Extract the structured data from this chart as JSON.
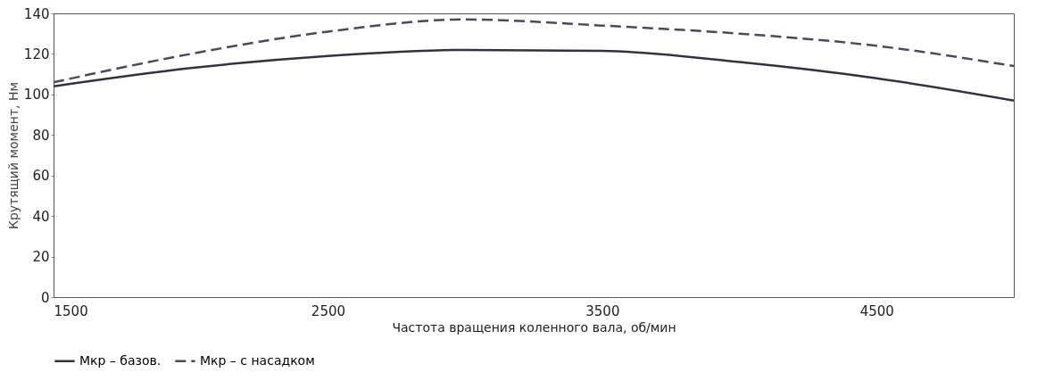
{
  "chart_data": {
    "type": "line",
    "xlabel": "Частота вращения коленного вала, об/мин",
    "ylabel": "Крутящий момент,  Нм",
    "x": [
      1500,
      2000,
      2500,
      3000,
      3500,
      4000,
      4500,
      5000
    ],
    "series": [
      {
        "name": "Мкр – базов.",
        "color": "#33333f",
        "line_style": "solid",
        "values": [
          104,
          113,
          119,
          122,
          121.5,
          116,
          108,
          97
        ]
      },
      {
        "name": "Мкр – с насадком",
        "color": "#4a4a58",
        "line_style": "dashed",
        "values": [
          106,
          120,
          131,
          137,
          134,
          130,
          124,
          114
        ]
      }
    ],
    "xlim": [
      1500,
      5000
    ],
    "xticks": [
      1500,
      2500,
      3500,
      4500
    ],
    "ylim": [
      0,
      140
    ],
    "yticks": [
      0,
      20,
      40,
      60,
      80,
      100,
      120,
      140
    ],
    "grid": false,
    "legend": "bottom",
    "marker": "none"
  }
}
